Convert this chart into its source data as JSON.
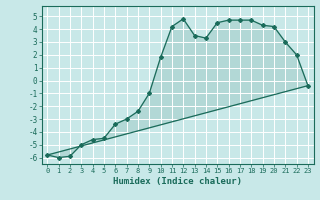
{
  "title": "",
  "xlabel": "Humidex (Indice chaleur)",
  "ylabel": "",
  "bg_color": "#c8e8e8",
  "grid_color": "#ffffff",
  "line_color": "#1a6b5a",
  "ylim": [
    -6.5,
    5.8
  ],
  "xlim": [
    -0.5,
    23.5
  ],
  "yticks": [
    -6,
    -5,
    -4,
    -3,
    -2,
    -1,
    0,
    1,
    2,
    3,
    4,
    5
  ],
  "xticks": [
    0,
    1,
    2,
    3,
    4,
    5,
    6,
    7,
    8,
    9,
    10,
    11,
    12,
    13,
    14,
    15,
    16,
    17,
    18,
    19,
    20,
    21,
    22,
    23
  ],
  "curve1_x": [
    0,
    1,
    2,
    3,
    4,
    5,
    6,
    7,
    8,
    9,
    10,
    11,
    12,
    13,
    14,
    15,
    16,
    17,
    18,
    19,
    20,
    21,
    22,
    23
  ],
  "curve1_y": [
    -5.8,
    -6.0,
    -5.9,
    -5.0,
    -4.6,
    -4.5,
    -3.4,
    -3.0,
    -2.4,
    -1.0,
    1.8,
    4.2,
    4.8,
    3.5,
    3.3,
    4.5,
    4.7,
    4.7,
    4.7,
    4.3,
    4.2,
    3.0,
    2.0,
    -0.4
  ],
  "line1_x": [
    0,
    23
  ],
  "line1_y": [
    -5.8,
    -0.4
  ],
  "line2_x": [
    0,
    23
  ],
  "line2_y": [
    -5.8,
    -0.4
  ]
}
